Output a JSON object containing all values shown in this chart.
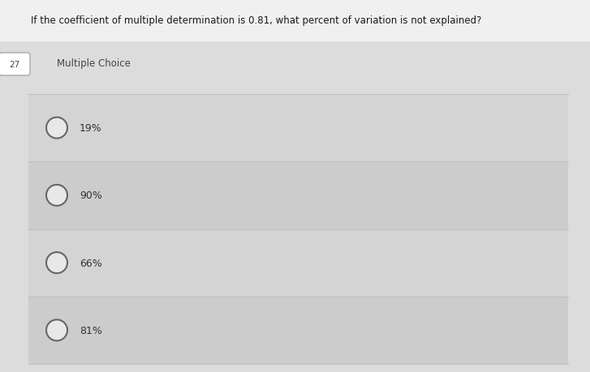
{
  "question": "If the coefficient of multiple determination is 0.81, what percent of variation is not explained?",
  "question_number": "27",
  "label": "Multiple Choice",
  "choices": [
    "19%",
    "90%",
    "66%",
    "81%"
  ],
  "bg_overall": "#e8e8e8",
  "bg_top": "#f2f2f2",
  "bg_main": "#e0e0e0",
  "bg_row_odd": "#d8d8d8",
  "bg_row_even": "#d0d0d0",
  "text_color": "#444444",
  "circle_edge_color": "#666666",
  "badge_bg": "#ffffff",
  "badge_edge": "#999999"
}
